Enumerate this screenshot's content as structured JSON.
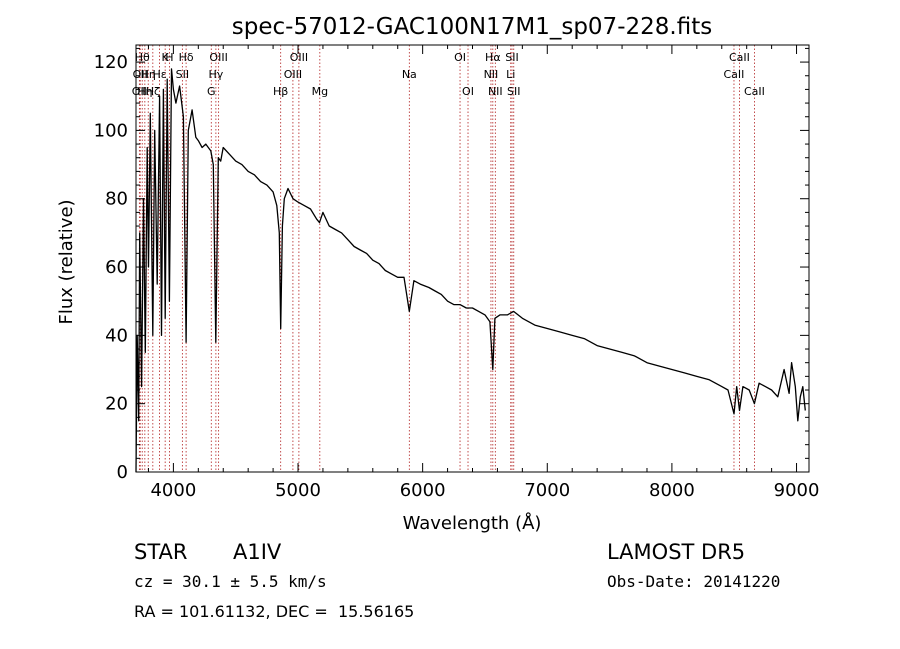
{
  "chart_data": {
    "type": "line",
    "title": "spec-57012-GAC100N17M1_sp07-228.fits",
    "xlabel": "Wavelength (Å)",
    "ylabel": "Flux (relative)",
    "xlim": [
      3700,
      9100
    ],
    "ylim": [
      0,
      125
    ],
    "x_ticks": [
      4000,
      5000,
      6000,
      7000,
      8000,
      9000
    ],
    "y_ticks": [
      0,
      20,
      40,
      60,
      80,
      100,
      120
    ],
    "line_color": "#000000",
    "marker_color": "#b22222",
    "spectrum": {
      "x": [
        3700,
        3710,
        3722,
        3730,
        3745,
        3760,
        3775,
        3790,
        3800,
        3815,
        3835,
        3850,
        3870,
        3889,
        3905,
        3920,
        3934,
        3950,
        3968,
        3985,
        4000,
        4020,
        4050,
        4080,
        4102,
        4120,
        4150,
        4180,
        4200,
        4230,
        4260,
        4300,
        4320,
        4340,
        4360,
        4380,
        4400,
        4450,
        4500,
        4550,
        4600,
        4650,
        4700,
        4750,
        4800,
        4830,
        4850,
        4861,
        4875,
        4890,
        4920,
        4960,
        5000,
        5050,
        5100,
        5150,
        5172,
        5200,
        5250,
        5300,
        5350,
        5400,
        5450,
        5500,
        5550,
        5600,
        5650,
        5700,
        5750,
        5800,
        5850,
        5893,
        5930,
        5980,
        6050,
        6100,
        6150,
        6200,
        6250,
        6300,
        6350,
        6400,
        6450,
        6500,
        6540,
        6563,
        6580,
        6620,
        6680,
        6730,
        6800,
        6900,
        7000,
        7100,
        7200,
        7300,
        7400,
        7500,
        7600,
        7700,
        7800,
        7900,
        8000,
        8100,
        8200,
        8300,
        8400,
        8450,
        8498,
        8520,
        8542,
        8570,
        8620,
        8662,
        8700,
        8750,
        8800,
        8850,
        8900,
        8940,
        8960,
        8990,
        9010,
        9030,
        9050,
        9070
      ],
      "y": [
        0,
        40,
        15,
        70,
        25,
        80,
        35,
        95,
        60,
        105,
        40,
        100,
        55,
        110,
        40,
        112,
        45,
        115,
        50,
        118,
        112,
        108,
        113,
        104,
        38,
        100,
        106,
        98,
        97,
        95,
        96,
        94,
        90,
        38,
        92,
        91,
        95,
        93,
        91,
        90,
        88,
        87,
        85,
        84,
        82,
        78,
        70,
        42,
        72,
        80,
        83,
        80,
        79,
        78,
        77,
        74,
        73,
        76,
        72,
        71,
        70,
        68,
        66,
        65,
        64,
        62,
        61,
        59,
        58,
        57,
        57,
        47,
        56,
        55,
        54,
        53,
        52,
        50,
        49,
        49,
        48,
        48,
        47,
        46,
        44,
        30,
        45,
        46,
        46,
        47,
        45,
        43,
        42,
        41,
        40,
        39,
        37,
        36,
        35,
        34,
        32,
        31,
        30,
        29,
        28,
        27,
        25,
        24,
        17,
        25,
        18,
        25,
        24,
        20,
        26,
        25,
        24,
        22,
        30,
        23,
        32,
        25,
        15,
        22,
        25,
        18
      ]
    },
    "line_markers": [
      {
        "x": 3727,
        "label": "OII",
        "row": 2
      },
      {
        "x": 3734,
        "label": "OII",
        "row": 1
      },
      {
        "x": 3750,
        "label": "Hθ",
        "row": 0
      },
      {
        "x": 3771,
        "label": "Hη",
        "row": 2
      },
      {
        "x": 3798,
        "label": "Hη",
        "row": 1
      },
      {
        "x": 3835,
        "label": "Hζ",
        "row": 2
      },
      {
        "x": 3889,
        "label": "Hε",
        "row": 1
      },
      {
        "x": 3934,
        "label": "K",
        "row": 0
      },
      {
        "x": 3968,
        "label": "H",
        "row": 0
      },
      {
        "x": 4102,
        "label": "Hδ",
        "row": 0
      },
      {
        "x": 4072,
        "label": "SII",
        "row": 1
      },
      {
        "x": 4304,
        "label": "G",
        "row": 2
      },
      {
        "x": 4341,
        "label": "Hγ",
        "row": 1
      },
      {
        "x": 4363,
        "label": "OIII",
        "row": 0
      },
      {
        "x": 4861,
        "label": "Hβ",
        "row": 2
      },
      {
        "x": 4959,
        "label": "OIII",
        "row": 1
      },
      {
        "x": 5007,
        "label": "OIII",
        "row": 0
      },
      {
        "x": 5175,
        "label": "Mg",
        "row": 2
      },
      {
        "x": 5893,
        "label": "Na",
        "row": 1
      },
      {
        "x": 6300,
        "label": "OI",
        "row": 0
      },
      {
        "x": 6364,
        "label": "OI",
        "row": 2
      },
      {
        "x": 6548,
        "label": "NII",
        "row": 1
      },
      {
        "x": 6563,
        "label": "Hα",
        "row": 0
      },
      {
        "x": 6583,
        "label": "NII",
        "row": 2
      },
      {
        "x": 6707,
        "label": "Li",
        "row": 1
      },
      {
        "x": 6717,
        "label": "SII",
        "row": 0
      },
      {
        "x": 6731,
        "label": "SII",
        "row": 2
      },
      {
        "x": 8498,
        "label": "CaII",
        "row": 1
      },
      {
        "x": 8542,
        "label": "CaII",
        "row": 0
      },
      {
        "x": 8662,
        "label": "CaII",
        "row": 2
      }
    ]
  },
  "info": {
    "class_label": "STAR",
    "subclass_label": "A1IV",
    "cz_text": "cz = 30.1 ± 5.5 km/s",
    "coords_text": "RA = 101.61132, DEC =  15.56165",
    "survey_label": "LAMOST DR5",
    "obs_date_text": "Obs-Date: 20141220"
  }
}
